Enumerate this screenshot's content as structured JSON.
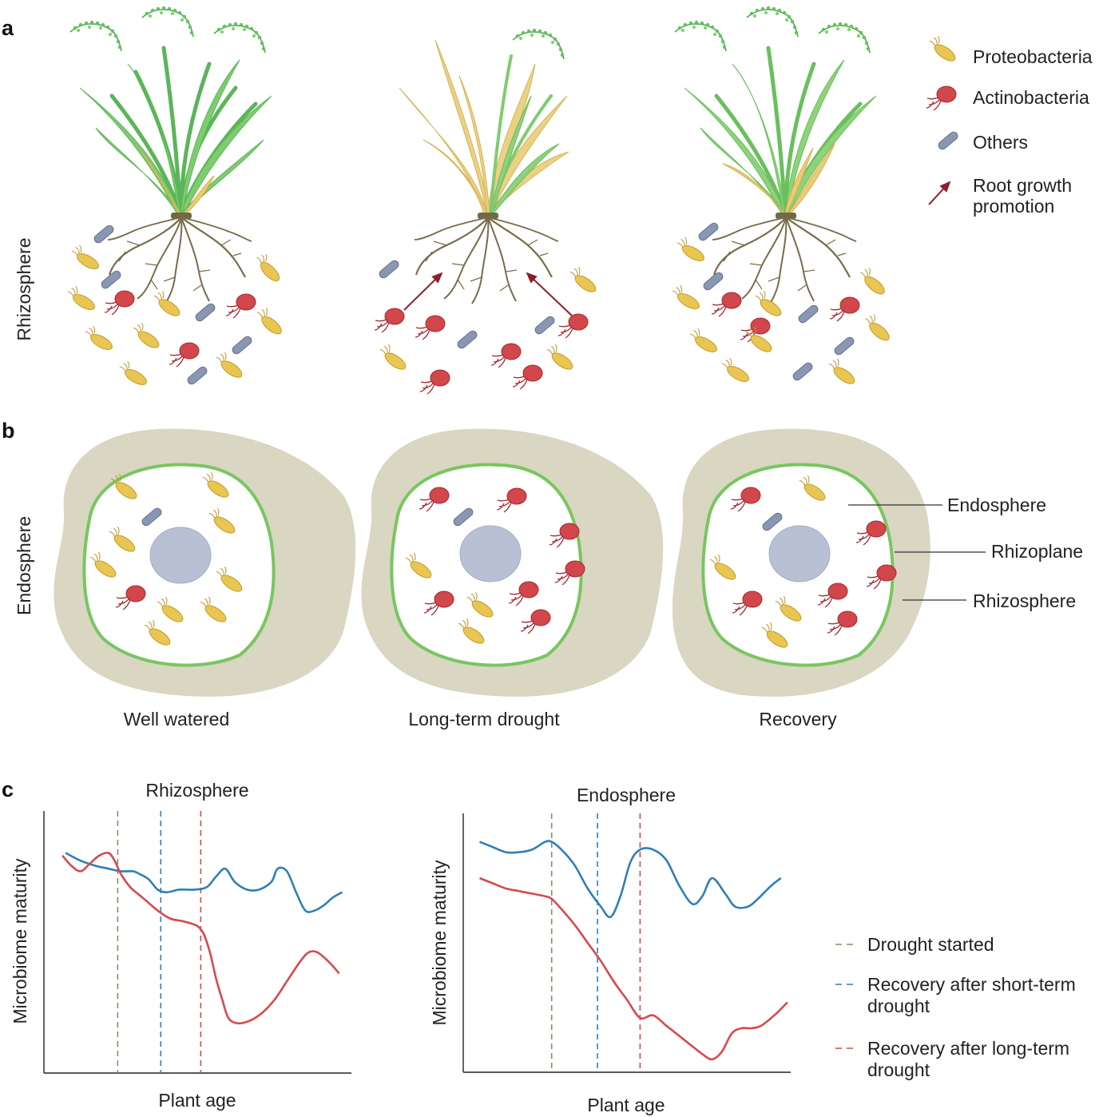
{
  "panels": {
    "a": "a",
    "b": "b",
    "c": "c"
  },
  "panel_a": {
    "side_label": "Rhizosphere"
  },
  "panel_b": {
    "side_label": "Endosphere",
    "conditions": [
      "Well watered",
      "Long-term drought",
      "Recovery"
    ],
    "zone_labels": {
      "endosphere": "Endosphere",
      "rhizoplane": "Rhizoplane",
      "rhizosphere": "Rhizosphere"
    }
  },
  "legend_a": {
    "items": [
      {
        "label": "Proteobacteria",
        "icon": "proteobacteria-icon",
        "color": "#e8c24e"
      },
      {
        "label": "Actinobacteria",
        "icon": "actinobacteria-icon",
        "color": "#d64a4c"
      },
      {
        "label": "Others",
        "icon": "others-bacteria-icon",
        "color": "#8a97b3"
      }
    ],
    "arrow_label_line1": "Root growth",
    "arrow_label_line2": "promotion",
    "arrow_color": "#8b1f2a"
  },
  "legend_c": {
    "items": [
      {
        "line1": "Drought started",
        "line2": "",
        "color": "#8c8a6a"
      },
      {
        "line1": "Recovery after short-term",
        "line2": "drought",
        "color": "#2f7fb6"
      },
      {
        "line1": "Recovery after long-term",
        "line2": "drought",
        "color": "#d64a4c"
      }
    ]
  },
  "chart_data": [
    {
      "type": "line",
      "title": "Rhizosphere",
      "xlabel": "Plant age",
      "ylabel": "Microbiome maturity",
      "xlim": [
        0,
        100
      ],
      "ylim": [
        0,
        100
      ],
      "vlines": [
        {
          "x": 24,
          "color": "#8c8a6a",
          "label": "Drought started"
        },
        {
          "x": 38,
          "color": "#2f7fb6",
          "label": "Recovery after short-term drought"
        },
        {
          "x": 51,
          "color": "#d64a4c",
          "label": "Recovery after long-term drought"
        }
      ],
      "series": [
        {
          "color": "#2f7fb6",
          "x": [
            7,
            12,
            17,
            21,
            25,
            29,
            31,
            34,
            37,
            40,
            44,
            49,
            53,
            56,
            59,
            62,
            66,
            70,
            74,
            76,
            79,
            82,
            85,
            88,
            91,
            94,
            97
          ],
          "y": [
            84,
            81,
            79,
            78,
            77,
            77,
            76,
            74,
            70,
            69,
            70,
            70,
            71,
            75,
            78,
            73,
            70,
            70,
            73,
            78,
            77,
            69,
            62,
            62,
            64,
            67,
            69
          ]
        },
        {
          "color": "#d64a4c",
          "x": [
            6,
            9,
            12,
            15,
            18,
            21,
            23,
            25,
            28,
            31,
            34,
            37,
            41,
            45,
            48,
            50,
            52,
            54,
            56,
            58,
            60,
            63,
            67,
            71,
            75,
            79,
            83,
            86,
            89,
            93,
            96
          ],
          "y": [
            83,
            79,
            77,
            80,
            83,
            84,
            81,
            76,
            71,
            68,
            65,
            62,
            59,
            58,
            57,
            56,
            53,
            46,
            36,
            28,
            21,
            19,
            20,
            23,
            28,
            35,
            42,
            46,
            46,
            42,
            38
          ]
        }
      ]
    },
    {
      "type": "line",
      "title": "Endosphere",
      "xlabel": "Plant age",
      "ylabel": "Microbiome maturity",
      "xlim": [
        0,
        100
      ],
      "ylim": [
        0,
        100
      ],
      "vlines": [
        {
          "x": 27,
          "color": "#8c8a6a",
          "label": "Drought started"
        },
        {
          "x": 41,
          "color": "#2f7fb6",
          "label": "Recovery after short-term drought"
        },
        {
          "x": 54,
          "color": "#d64a4c",
          "label": "Recovery after long-term drought"
        }
      ],
      "series": [
        {
          "color": "#2f7fb6",
          "x": [
            5,
            9,
            13,
            17,
            21,
            25,
            27,
            30,
            34,
            38,
            42,
            45,
            48,
            51,
            54,
            58,
            62,
            66,
            70,
            73,
            76,
            80,
            83,
            87,
            90,
            94,
            97
          ],
          "y": [
            89,
            87,
            85,
            85,
            86,
            89,
            89,
            86,
            80,
            71,
            64,
            60,
            68,
            81,
            86,
            86,
            82,
            72,
            65,
            68,
            75,
            69,
            64,
            64,
            67,
            72,
            75
          ]
        },
        {
          "color": "#d64a4c",
          "x": [
            5,
            9,
            13,
            17,
            21,
            25,
            27,
            30,
            34,
            38,
            42,
            46,
            50,
            54,
            58,
            62,
            66,
            70,
            73,
            76,
            79,
            82,
            85,
            88,
            91,
            95,
            99
          ],
          "y": [
            75,
            73,
            71,
            70,
            69,
            68,
            67,
            63,
            57,
            50,
            43,
            35,
            28,
            21,
            22,
            18,
            14,
            10,
            7,
            5,
            8,
            15,
            17,
            17,
            18,
            22,
            27
          ]
        }
      ]
    }
  ]
}
